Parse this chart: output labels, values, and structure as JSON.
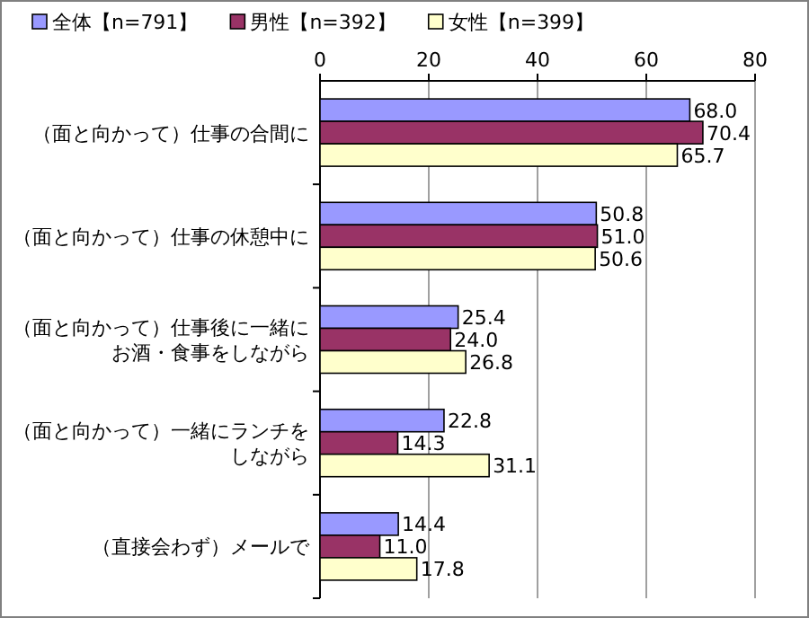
{
  "chart_data": {
    "type": "bar",
    "orientation": "horizontal",
    "categories": [
      "（面と向かって）仕事の合間に",
      "（面と向かって）仕事の休憩中に",
      "（面と向かって）仕事後に一緒にお酒・食事をしながら",
      "（面と向かって）一緒にランチをしながら",
      "（直接会わず）メールで"
    ],
    "series": [
      {
        "name": "全体【n=791】",
        "color": "#9999ff",
        "values": [
          68.0,
          50.8,
          25.4,
          22.8,
          14.4
        ],
        "value_labels": [
          "68.0",
          "50.8",
          "25.4",
          "22.8",
          "14.4"
        ]
      },
      {
        "name": "男性【n=392】",
        "color": "#993366",
        "values": [
          70.4,
          51.0,
          24.0,
          14.3,
          11.0
        ],
        "value_labels": [
          "70.4",
          "51.0",
          "24.0",
          "14.3",
          "11.0"
        ]
      },
      {
        "name": "女性【n=399】",
        "color": "#ffffcc",
        "values": [
          65.7,
          50.6,
          26.8,
          31.1,
          17.8
        ],
        "value_labels": [
          "65.7",
          "50.6",
          "26.8",
          "31.1",
          "17.8"
        ]
      }
    ],
    "xlim": [
      0,
      80
    ],
    "xticks": [
      0,
      20,
      40,
      60,
      80
    ],
    "grid": "x",
    "legend": "top"
  }
}
